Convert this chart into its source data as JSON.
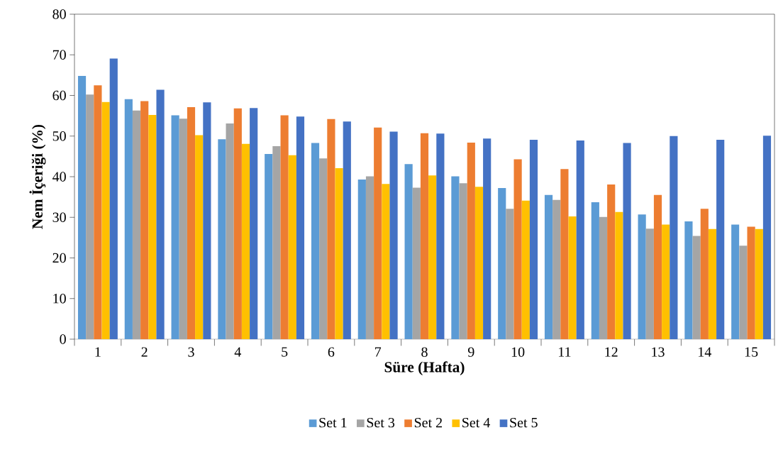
{
  "chart_data": {
    "type": "bar",
    "xlabel": "Süre (Hafta)",
    "ylabel": "Nem İçeriği (%)",
    "categories": [
      "1",
      "2",
      "3",
      "4",
      "5",
      "6",
      "7",
      "8",
      "9",
      "10",
      "11",
      "12",
      "13",
      "14",
      "15"
    ],
    "series": [
      {
        "name": "Set 1",
        "color": "#5b9bd5",
        "values": [
          64.8,
          59.1,
          55.1,
          49.2,
          45.6,
          48.3,
          39.3,
          43.1,
          40.1,
          37.2,
          35.5,
          33.7,
          30.7,
          29.0,
          28.2
        ]
      },
      {
        "name": "Set 3",
        "color": "#a5a5a5",
        "values": [
          60.2,
          56.3,
          54.3,
          53.1,
          47.5,
          44.5,
          40.1,
          37.3,
          38.4,
          32.1,
          34.3,
          30.1,
          27.2,
          25.4,
          23.0
        ]
      },
      {
        "name": "Set 2",
        "color": "#ed7d31",
        "values": [
          62.5,
          58.6,
          57.1,
          56.8,
          55.1,
          54.2,
          52.1,
          50.7,
          48.4,
          44.3,
          41.9,
          38.1,
          35.5,
          32.1,
          27.7
        ]
      },
      {
        "name": "Set 4",
        "color": "#ffc000",
        "values": [
          58.4,
          55.2,
          50.2,
          48.1,
          45.3,
          42.1,
          38.2,
          40.3,
          37.5,
          34.1,
          30.2,
          31.3,
          28.2,
          27.1,
          27.1
        ]
      },
      {
        "name": "Set 5",
        "color": "#4472c4",
        "values": [
          69.1,
          61.4,
          58.3,
          56.9,
          54.8,
          53.6,
          51.1,
          50.6,
          49.4,
          49.1,
          48.9,
          48.3,
          50.0,
          49.1,
          50.1
        ]
      }
    ],
    "ylim": [
      0,
      80
    ],
    "yticks": [
      0,
      10,
      20,
      30,
      40,
      50,
      60,
      70,
      80
    ],
    "grid": false,
    "legend": "bottom"
  }
}
